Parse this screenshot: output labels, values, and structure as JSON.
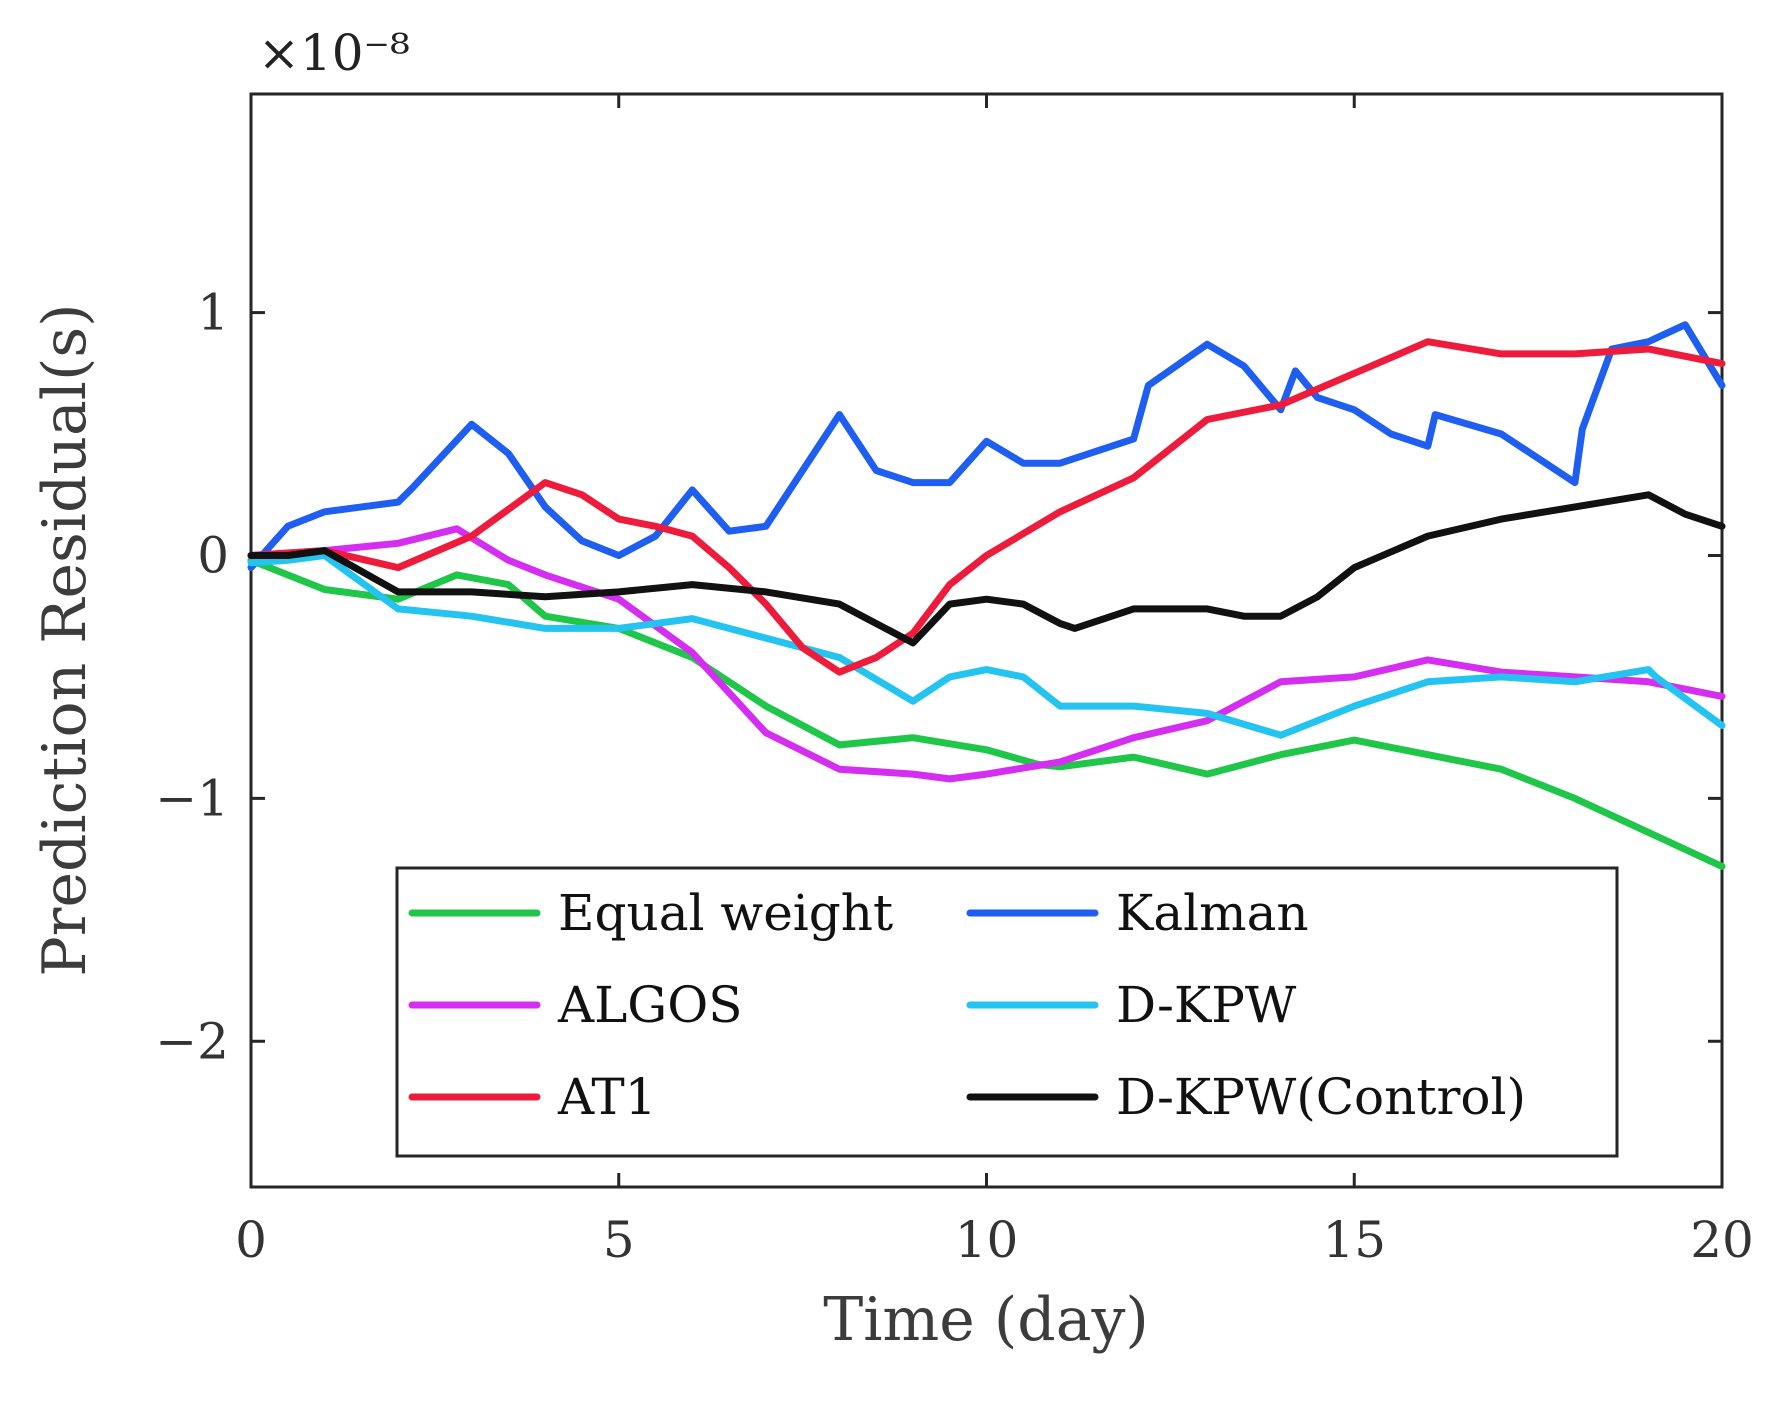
{
  "chart_data": {
    "type": "line",
    "xlabel": "Time (day)",
    "ylabel": "Prediction Residual(s)",
    "y_exponent_label": "×10⁻⁸",
    "y_scale_factor": 1e-08,
    "xlim": [
      0,
      20
    ],
    "ylim": [
      -2.6,
      1.9
    ],
    "xticks": [
      0,
      5,
      10,
      15,
      20
    ],
    "xtick_labels": [
      "0",
      "5",
      "10",
      "15",
      "20"
    ],
    "yticks": [
      -2,
      -1,
      0,
      1
    ],
    "ytick_labels": [
      "−2",
      "−1",
      "0",
      "1"
    ],
    "grid": false,
    "legend_position": "bottom-center",
    "series": [
      {
        "name": "Equal weight",
        "color": "#1fc64a",
        "x": [
          0,
          1,
          2,
          2.8,
          3.5,
          4,
          5,
          6,
          7,
          8,
          9,
          10,
          10.7,
          11,
          12,
          13,
          14,
          15,
          16,
          17,
          18,
          19,
          20
        ],
        "y": [
          -0.02,
          -0.14,
          -0.18,
          -0.08,
          -0.12,
          -0.25,
          -0.3,
          -0.42,
          -0.62,
          -0.78,
          -0.75,
          -0.8,
          -0.86,
          -0.87,
          -0.83,
          -0.9,
          -0.82,
          -0.76,
          -0.82,
          -0.88,
          -1.0,
          -1.14,
          -1.28
        ]
      },
      {
        "name": "Kalman",
        "color": "#1e5ef0",
        "x": [
          0,
          0.5,
          1,
          2,
          2.2,
          3,
          3.5,
          4,
          4.5,
          5,
          5.5,
          6,
          6.5,
          7,
          8,
          8.5,
          9,
          9.5,
          10,
          10.5,
          11,
          12,
          12.2,
          13,
          13.5,
          14,
          14.2,
          14.5,
          15,
          15.5,
          16,
          16.1,
          17,
          18,
          18.1,
          18.5,
          19,
          19.5,
          20
        ],
        "y": [
          -0.05,
          0.12,
          0.18,
          0.22,
          0.28,
          0.54,
          0.42,
          0.2,
          0.06,
          0.0,
          0.08,
          0.27,
          0.1,
          0.12,
          0.58,
          0.35,
          0.3,
          0.3,
          0.47,
          0.38,
          0.38,
          0.48,
          0.7,
          0.87,
          0.78,
          0.6,
          0.76,
          0.65,
          0.6,
          0.5,
          0.45,
          0.58,
          0.5,
          0.3,
          0.52,
          0.85,
          0.88,
          0.95,
          0.7
        ]
      },
      {
        "name": "ALGOS",
        "color": "#d42ef0",
        "x": [
          0,
          1,
          2,
          2.8,
          3.5,
          4,
          5,
          6,
          7,
          8,
          9,
          9.5,
          10,
          11,
          12,
          13,
          14,
          15,
          16,
          17,
          18,
          19,
          20
        ],
        "y": [
          0.0,
          0.02,
          0.05,
          0.11,
          -0.02,
          -0.08,
          -0.18,
          -0.4,
          -0.73,
          -0.88,
          -0.9,
          -0.92,
          -0.9,
          -0.85,
          -0.75,
          -0.68,
          -0.52,
          -0.5,
          -0.43,
          -0.48,
          -0.5,
          -0.52,
          -0.58
        ]
      },
      {
        "name": "D-KPW",
        "color": "#25c3f0",
        "x": [
          0,
          0.5,
          1,
          2,
          3,
          4,
          5,
          6,
          7,
          8,
          9,
          9.5,
          10,
          10.5,
          11,
          12,
          13,
          14,
          15,
          16,
          17,
          18,
          19,
          19.1,
          20
        ],
        "y": [
          -0.03,
          -0.02,
          0.0,
          -0.22,
          -0.25,
          -0.3,
          -0.3,
          -0.26,
          -0.34,
          -0.42,
          -0.6,
          -0.5,
          -0.47,
          -0.5,
          -0.62,
          -0.62,
          -0.65,
          -0.74,
          -0.62,
          -0.52,
          -0.5,
          -0.52,
          -0.47,
          -0.5,
          -0.7
        ]
      },
      {
        "name": "AT1",
        "color": "#ee1c3c",
        "x": [
          0,
          1,
          2,
          3,
          4,
          4.5,
          5,
          5.5,
          6,
          6.5,
          7,
          7.5,
          8,
          8.5,
          9,
          9.5,
          10,
          11,
          12,
          13,
          14,
          15,
          16,
          17,
          18,
          19,
          20
        ],
        "y": [
          0.0,
          0.02,
          -0.05,
          0.08,
          0.3,
          0.25,
          0.15,
          0.12,
          0.08,
          -0.05,
          -0.2,
          -0.38,
          -0.48,
          -0.42,
          -0.32,
          -0.12,
          0.0,
          0.18,
          0.32,
          0.56,
          0.62,
          0.75,
          0.88,
          0.83,
          0.83,
          0.85,
          0.79
        ]
      },
      {
        "name": "D-KPW(Control)",
        "color": "#111111",
        "x": [
          0,
          0.5,
          1,
          2,
          3,
          4,
          5,
          6,
          7,
          8,
          9,
          9.5,
          10,
          10.5,
          11,
          11.2,
          12,
          13,
          13.5,
          14,
          14.5,
          15,
          16,
          17,
          18,
          19,
          19.5,
          20
        ],
        "y": [
          0.0,
          0.0,
          0.02,
          -0.15,
          -0.15,
          -0.17,
          -0.15,
          -0.12,
          -0.15,
          -0.2,
          -0.36,
          -0.2,
          -0.18,
          -0.2,
          -0.28,
          -0.3,
          -0.22,
          -0.22,
          -0.25,
          -0.25,
          -0.17,
          -0.05,
          0.08,
          0.15,
          0.2,
          0.25,
          0.17,
          0.12
        ]
      }
    ],
    "legend": {
      "entries_left": [
        "Equal weight",
        "ALGOS",
        "AT1"
      ],
      "entries_right": [
        "Kalman",
        "D-KPW",
        "D-KPW(Control)"
      ]
    }
  }
}
